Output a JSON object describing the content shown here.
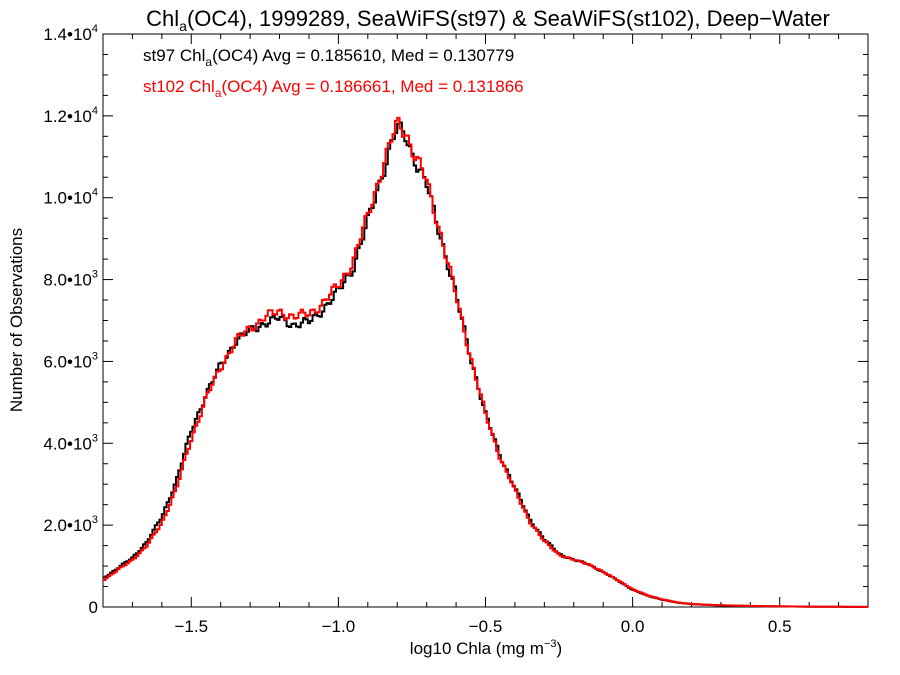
{
  "chart_data": {
    "type": "line",
    "title": {
      "prefix": "Chl",
      "sub": "a",
      "rest": "(OC4), 1999289, SeaWiFS(st97) & SeaWiFS(st102), Deep−Water"
    },
    "xlabel": {
      "pre": "log10 Chla (mg m",
      "sup": "−3",
      "post": ")"
    },
    "ylabel": "Number of Observations",
    "xlim": [
      -1.8,
      0.8
    ],
    "ylim": [
      0,
      14000
    ],
    "x_ticks": [
      {
        "value": -1.5,
        "label": "−1.5"
      },
      {
        "value": -1.0,
        "label": "−1.0"
      },
      {
        "value": -0.5,
        "label": "−0.5"
      },
      {
        "value": 0.0,
        "label": "0.0"
      },
      {
        "value": 0.5,
        "label": "0.5"
      }
    ],
    "y_ticks": [
      {
        "value": 0,
        "mantissa": "0",
        "exp": ""
      },
      {
        "value": 2000,
        "mantissa": "2.0•10",
        "exp": "3"
      },
      {
        "value": 4000,
        "mantissa": "4.0•10",
        "exp": "3"
      },
      {
        "value": 6000,
        "mantissa": "6.0•10",
        "exp": "3"
      },
      {
        "value": 8000,
        "mantissa": "8.0•10",
        "exp": "3"
      },
      {
        "value": 10000,
        "mantissa": "1.0•10",
        "exp": "4"
      },
      {
        "value": 12000,
        "mantissa": "1.2•10",
        "exp": "4"
      },
      {
        "value": 14000,
        "mantissa": "1.4•10",
        "exp": "4"
      }
    ],
    "grid": false,
    "series": [
      {
        "name": "st97",
        "color": "#000000",
        "annotation": {
          "pre": "st97 Chl",
          "sub": "a",
          "post": "(OC4) Avg = 0.185610, Med = 0.130779"
        },
        "points": [
          [
            -1.8,
            700
          ],
          [
            -1.75,
            950
          ],
          [
            -1.7,
            1200
          ],
          [
            -1.65,
            1600
          ],
          [
            -1.6,
            2200
          ],
          [
            -1.55,
            3100
          ],
          [
            -1.5,
            4300
          ],
          [
            -1.45,
            5200
          ],
          [
            -1.4,
            5900
          ],
          [
            -1.35,
            6500
          ],
          [
            -1.3,
            6750
          ],
          [
            -1.25,
            6950
          ],
          [
            -1.2,
            7050
          ],
          [
            -1.15,
            6900
          ],
          [
            -1.1,
            6950
          ],
          [
            -1.05,
            7300
          ],
          [
            -1.0,
            7700
          ],
          [
            -0.95,
            8300
          ],
          [
            -0.9,
            9400
          ],
          [
            -0.85,
            10600
          ],
          [
            -0.82,
            11300
          ],
          [
            -0.8,
            11700
          ],
          [
            -0.77,
            11500
          ],
          [
            -0.75,
            11100
          ],
          [
            -0.7,
            10300
          ],
          [
            -0.65,
            9000
          ],
          [
            -0.6,
            7600
          ],
          [
            -0.55,
            6100
          ],
          [
            -0.5,
            4700
          ],
          [
            -0.45,
            3700
          ],
          [
            -0.4,
            2900
          ],
          [
            -0.35,
            2150
          ],
          [
            -0.3,
            1650
          ],
          [
            -0.25,
            1300
          ],
          [
            -0.2,
            1150
          ],
          [
            -0.15,
            1050
          ],
          [
            -0.1,
            850
          ],
          [
            -0.05,
            650
          ],
          [
            0.0,
            420
          ],
          [
            0.05,
            280
          ],
          [
            0.1,
            180
          ],
          [
            0.15,
            110
          ],
          [
            0.2,
            70
          ],
          [
            0.3,
            40
          ],
          [
            0.4,
            25
          ],
          [
            0.5,
            15
          ],
          [
            0.6,
            8
          ],
          [
            0.7,
            4
          ],
          [
            0.8,
            2
          ]
        ]
      },
      {
        "name": "st102",
        "color": "#ff0000",
        "annotation": {
          "pre": "st102 Chl",
          "sub": "a",
          "post": "(OC4) Avg = 0.186661, Med = 0.131866"
        },
        "points": [
          [
            -1.8,
            650
          ],
          [
            -1.75,
            900
          ],
          [
            -1.7,
            1150
          ],
          [
            -1.65,
            1500
          ],
          [
            -1.6,
            2050
          ],
          [
            -1.55,
            2900
          ],
          [
            -1.5,
            4100
          ],
          [
            -1.45,
            5100
          ],
          [
            -1.4,
            5850
          ],
          [
            -1.35,
            6500
          ],
          [
            -1.3,
            6800
          ],
          [
            -1.25,
            7100
          ],
          [
            -1.2,
            7200
          ],
          [
            -1.15,
            7100
          ],
          [
            -1.1,
            7150
          ],
          [
            -1.05,
            7450
          ],
          [
            -1.0,
            7850
          ],
          [
            -0.95,
            8450
          ],
          [
            -0.9,
            9550
          ],
          [
            -0.85,
            10750
          ],
          [
            -0.82,
            11400
          ],
          [
            -0.8,
            11800
          ],
          [
            -0.77,
            11600
          ],
          [
            -0.75,
            11200
          ],
          [
            -0.7,
            10400
          ],
          [
            -0.65,
            9050
          ],
          [
            -0.6,
            7600
          ],
          [
            -0.55,
            6100
          ],
          [
            -0.5,
            4700
          ],
          [
            -0.45,
            3650
          ],
          [
            -0.4,
            2850
          ],
          [
            -0.35,
            2100
          ],
          [
            -0.3,
            1600
          ],
          [
            -0.25,
            1280
          ],
          [
            -0.2,
            1150
          ],
          [
            -0.15,
            1050
          ],
          [
            -0.1,
            850
          ],
          [
            -0.05,
            660
          ],
          [
            0.0,
            430
          ],
          [
            0.05,
            290
          ],
          [
            0.1,
            185
          ],
          [
            0.15,
            115
          ],
          [
            0.2,
            72
          ],
          [
            0.3,
            42
          ],
          [
            0.4,
            26
          ],
          [
            0.5,
            16
          ],
          [
            0.6,
            9
          ],
          [
            0.7,
            5
          ],
          [
            0.8,
            2
          ]
        ]
      }
    ]
  }
}
